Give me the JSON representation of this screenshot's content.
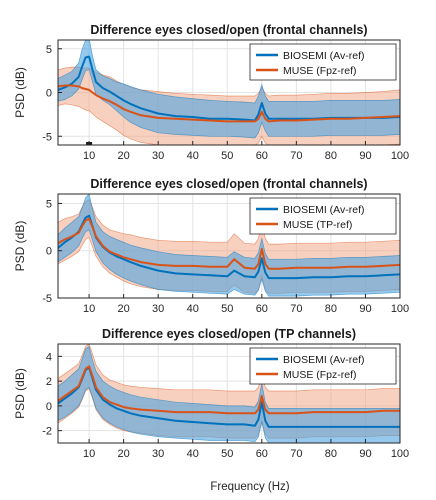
{
  "figure": {
    "xlabel": "Frequency (Hz)",
    "colors": {
      "biosemi": "#0072BD",
      "muse": "#D95319",
      "biosemi_band": "#4DA3E0",
      "muse_band": "#F2A98A"
    }
  },
  "chart_data": [
    {
      "type": "line",
      "title": "Difference eyes closed/open (frontal channels)",
      "ylabel": "PSD (dB)",
      "xlabel": "",
      "xlim": [
        1,
        100
      ],
      "ylim": [
        -6,
        6
      ],
      "xticks": [
        10,
        20,
        30,
        40,
        50,
        60,
        70,
        80,
        90,
        100
      ],
      "yticks": [
        -5,
        0,
        5
      ],
      "grid": true,
      "legend": "top-right",
      "marker": {
        "x": 10,
        "y": -6
      },
      "series": [
        {
          "name": "BIOSEMI (Av-ref)",
          "x": [
            1,
            3,
            5,
            7,
            8,
            9,
            10,
            11,
            12,
            14,
            16,
            18,
            20,
            22,
            25,
            30,
            35,
            40,
            45,
            50,
            55,
            58,
            59,
            60,
            61,
            62,
            65,
            70,
            75,
            80,
            85,
            90,
            95,
            100
          ],
          "y": [
            0.3,
            0.6,
            1.0,
            1.8,
            3.0,
            4.0,
            4.1,
            2.6,
            1.2,
            0.5,
            0.1,
            -0.4,
            -0.9,
            -1.3,
            -1.8,
            -2.4,
            -2.7,
            -2.8,
            -3.0,
            -3.0,
            -3.1,
            -3.2,
            -2.5,
            -1.2,
            -2.4,
            -3.0,
            -3.0,
            -3.0,
            -3.0,
            -2.9,
            -2.9,
            -2.9,
            -2.9,
            -2.8
          ],
          "lower": [
            -1.0,
            -0.8,
            -0.4,
            0.4,
            1.5,
            2.5,
            2.6,
            1.2,
            -0.2,
            -0.9,
            -1.4,
            -2.1,
            -2.8,
            -3.4,
            -4.0,
            -4.6,
            -4.8,
            -4.9,
            -5.0,
            -5.0,
            -5.1,
            -5.2,
            -4.6,
            -3.4,
            -4.4,
            -5.0,
            -5.0,
            -5.0,
            -5.0,
            -4.9,
            -4.9,
            -4.9,
            -4.9,
            -4.8
          ],
          "upper": [
            1.6,
            2.0,
            2.4,
            3.4,
            5.0,
            6.0,
            6.2,
            4.2,
            2.6,
            1.9,
            1.6,
            1.2,
            1.0,
            0.7,
            0.3,
            -0.2,
            -0.5,
            -0.7,
            -0.9,
            -1.0,
            -1.1,
            -1.2,
            -0.4,
            0.9,
            -0.4,
            -1.0,
            -1.0,
            -1.0,
            -1.0,
            -0.9,
            -0.9,
            -0.9,
            -0.9,
            -0.8
          ]
        },
        {
          "name": "MUSE (Fpz-ref)",
          "x": [
            1,
            3,
            5,
            7,
            8,
            9,
            10,
            11,
            12,
            14,
            16,
            18,
            20,
            22,
            25,
            30,
            35,
            40,
            45,
            50,
            55,
            58,
            59,
            60,
            61,
            62,
            65,
            70,
            75,
            80,
            85,
            90,
            95,
            100
          ],
          "y": [
            0.7,
            0.8,
            0.8,
            0.7,
            0.5,
            0.4,
            0.3,
            0.0,
            -0.3,
            -0.7,
            -1.0,
            -1.4,
            -1.9,
            -2.2,
            -2.6,
            -2.9,
            -3.0,
            -3.1,
            -3.2,
            -3.3,
            -3.3,
            -3.3,
            -3.0,
            -2.2,
            -3.0,
            -3.3,
            -3.2,
            -3.2,
            -3.1,
            -3.0,
            -3.0,
            -2.9,
            -2.8,
            -2.7
          ],
          "lower": [
            -1.5,
            -1.3,
            -1.4,
            -1.6,
            -1.8,
            -2.0,
            -2.1,
            -2.4,
            -2.8,
            -3.3,
            -3.8,
            -4.3,
            -4.9,
            -5.3,
            -5.7,
            -6.0,
            -6.0,
            -6.0,
            -6.0,
            -6.0,
            -6.0,
            -6.0,
            -5.8,
            -5.0,
            -5.8,
            -6.0,
            -6.0,
            -6.0,
            -6.0,
            -6.0,
            -6.0,
            -6.0,
            -6.0,
            -5.9
          ],
          "upper": [
            2.6,
            2.8,
            2.9,
            2.9,
            2.8,
            2.8,
            2.8,
            2.6,
            2.3,
            2.0,
            1.8,
            1.3,
            0.9,
            0.6,
            0.3,
            0.1,
            -0.1,
            -0.2,
            -0.3,
            -0.4,
            -0.4,
            -0.4,
            -0.1,
            0.6,
            -0.1,
            -0.4,
            -0.3,
            -0.3,
            -0.2,
            -0.1,
            -0.1,
            0.0,
            0.1,
            0.3
          ]
        }
      ]
    },
    {
      "type": "line",
      "title": "Difference eyes closed/open (frontal channels)",
      "ylabel": "PSD (dB)",
      "xlabel": "",
      "xlim": [
        1,
        100
      ],
      "ylim": [
        -5,
        6
      ],
      "xticks": [
        10,
        20,
        30,
        40,
        50,
        60,
        70,
        80,
        90,
        100
      ],
      "yticks": [
        -5,
        0,
        5
      ],
      "grid": true,
      "legend": "top-right",
      "series": [
        {
          "name": "BIOSEMI (Av-ref)",
          "x": [
            1,
            3,
            5,
            7,
            8,
            9,
            10,
            11,
            12,
            14,
            16,
            18,
            20,
            22,
            25,
            30,
            35,
            40,
            45,
            50,
            52,
            55,
            58,
            59,
            60,
            61,
            62,
            65,
            70,
            75,
            80,
            85,
            90,
            95,
            100
          ],
          "y": [
            0.3,
            0.9,
            1.4,
            2.0,
            2.8,
            3.5,
            3.7,
            2.6,
            1.4,
            0.4,
            -0.2,
            -0.6,
            -0.9,
            -1.2,
            -1.6,
            -2.1,
            -2.4,
            -2.5,
            -2.6,
            -2.7,
            -2.1,
            -2.7,
            -2.8,
            -2.2,
            -0.8,
            -2.3,
            -2.9,
            -2.9,
            -2.9,
            -2.8,
            -2.8,
            -2.7,
            -2.7,
            -2.6,
            -2.5
          ],
          "lower": [
            -1.2,
            -0.7,
            -0.2,
            0.5,
            1.3,
            2.0,
            2.2,
            1.1,
            -0.1,
            -1.3,
            -2.0,
            -2.5,
            -2.9,
            -3.2,
            -3.6,
            -4.1,
            -4.3,
            -4.4,
            -4.5,
            -4.6,
            -4.1,
            -4.6,
            -4.7,
            -4.2,
            -3.0,
            -4.3,
            -4.8,
            -4.8,
            -4.8,
            -4.7,
            -4.7,
            -4.6,
            -4.6,
            -4.5,
            -4.4
          ],
          "upper": [
            1.7,
            2.4,
            3.0,
            3.6,
            4.6,
            5.6,
            6.0,
            4.4,
            3.0,
            2.0,
            1.5,
            1.2,
            0.9,
            0.6,
            0.3,
            -0.1,
            -0.4,
            -0.5,
            -0.6,
            -0.7,
            -0.1,
            -0.7,
            -0.8,
            -0.2,
            1.3,
            -0.3,
            -0.9,
            -0.9,
            -0.9,
            -0.8,
            -0.8,
            -0.7,
            -0.7,
            -0.6,
            -0.5
          ]
        },
        {
          "name": "MUSE (TP-ref)",
          "x": [
            1,
            3,
            5,
            7,
            8,
            9,
            10,
            11,
            12,
            14,
            16,
            18,
            20,
            22,
            25,
            30,
            35,
            40,
            45,
            50,
            52,
            55,
            58,
            59,
            60,
            61,
            62,
            65,
            70,
            75,
            80,
            85,
            90,
            95,
            100
          ],
          "y": [
            0.8,
            1.2,
            1.5,
            1.9,
            2.6,
            3.2,
            3.4,
            2.5,
            1.5,
            0.5,
            -0.1,
            -0.4,
            -0.7,
            -0.9,
            -1.2,
            -1.5,
            -1.6,
            -1.6,
            -1.7,
            -1.7,
            -0.9,
            -1.8,
            -1.9,
            -1.4,
            0.2,
            -1.4,
            -1.9,
            -1.9,
            -1.8,
            -1.8,
            -1.8,
            -1.7,
            -1.7,
            -1.6,
            -1.5
          ],
          "lower": [
            -1.4,
            -1.0,
            -0.6,
            -0.1,
            0.6,
            1.2,
            1.4,
            0.4,
            -0.6,
            -1.7,
            -2.4,
            -2.8,
            -3.2,
            -3.5,
            -3.8,
            -4.1,
            -4.2,
            -4.2,
            -4.3,
            -4.3,
            -3.6,
            -4.4,
            -4.5,
            -4.1,
            -2.7,
            -4.1,
            -4.5,
            -4.5,
            -4.4,
            -4.4,
            -4.4,
            -4.3,
            -4.3,
            -4.2,
            -4.1
          ],
          "upper": [
            3.0,
            3.4,
            3.6,
            3.9,
            4.6,
            5.2,
            5.4,
            4.6,
            3.6,
            2.7,
            2.2,
            2.0,
            1.8,
            1.7,
            1.4,
            1.1,
            1.0,
            1.0,
            0.9,
            0.9,
            1.8,
            0.8,
            0.7,
            1.3,
            3.1,
            1.3,
            0.7,
            0.7,
            0.8,
            0.8,
            0.8,
            0.9,
            0.9,
            1.0,
            1.1
          ]
        }
      ]
    },
    {
      "type": "line",
      "title": "Difference eyes closed/open (TP channels)",
      "ylabel": "PSD (dB)",
      "xlabel": "Frequency (Hz)",
      "xlim": [
        1,
        100
      ],
      "ylim": [
        -3,
        5
      ],
      "xticks": [
        10,
        20,
        30,
        40,
        50,
        60,
        70,
        80,
        90,
        100
      ],
      "yticks": [
        -2,
        0,
        2,
        4
      ],
      "grid": true,
      "legend": "top-right",
      "series": [
        {
          "name": "BIOSEMI (Av-ref)",
          "x": [
            1,
            3,
            5,
            7,
            8,
            9,
            10,
            11,
            12,
            14,
            16,
            18,
            20,
            22,
            25,
            30,
            35,
            40,
            45,
            50,
            55,
            58,
            59,
            60,
            61,
            62,
            65,
            70,
            75,
            80,
            85,
            90,
            95,
            100
          ],
          "y": [
            0.2,
            0.6,
            1.0,
            1.5,
            2.2,
            2.9,
            3.1,
            2.2,
            1.3,
            0.5,
            0.1,
            -0.2,
            -0.4,
            -0.6,
            -0.8,
            -1.0,
            -1.2,
            -1.3,
            -1.4,
            -1.5,
            -1.5,
            -1.6,
            -1.1,
            0.3,
            -1.2,
            -1.7,
            -1.7,
            -1.7,
            -1.7,
            -1.7,
            -1.7,
            -1.7,
            -1.7,
            -1.7
          ],
          "lower": [
            -1.2,
            -0.9,
            -0.5,
            0.0,
            0.6,
            1.3,
            1.5,
            0.7,
            -0.2,
            -1.0,
            -1.4,
            -1.7,
            -1.9,
            -2.1,
            -2.3,
            -2.5,
            -2.6,
            -2.7,
            -2.8,
            -2.8,
            -2.8,
            -2.9,
            -2.5,
            -1.3,
            -2.6,
            -3.0,
            -3.0,
            -3.0,
            -3.0,
            -3.0,
            -3.0,
            -3.0,
            -3.0,
            -3.0
          ],
          "upper": [
            1.6,
            2.0,
            2.5,
            3.0,
            3.8,
            4.6,
            4.8,
            3.7,
            2.8,
            2.0,
            1.6,
            1.3,
            1.1,
            0.9,
            0.7,
            0.5,
            0.3,
            0.2,
            0.1,
            0.0,
            0.0,
            -0.1,
            0.4,
            1.8,
            0.3,
            -0.2,
            -0.2,
            -0.2,
            -0.2,
            -0.2,
            -0.2,
            -0.2,
            -0.2,
            -0.2
          ]
        },
        {
          "name": "MUSE (Fpz-ref)",
          "x": [
            1,
            3,
            5,
            7,
            8,
            9,
            10,
            11,
            12,
            14,
            16,
            18,
            20,
            22,
            25,
            30,
            35,
            40,
            45,
            50,
            55,
            58,
            59,
            60,
            61,
            62,
            65,
            70,
            75,
            80,
            85,
            90,
            95,
            100
          ],
          "y": [
            0.4,
            0.8,
            1.2,
            1.6,
            2.3,
            3.0,
            3.2,
            2.4,
            1.5,
            0.7,
            0.3,
            0.1,
            -0.1,
            -0.2,
            -0.3,
            -0.4,
            -0.5,
            -0.5,
            -0.5,
            -0.6,
            -0.6,
            -0.6,
            -0.3,
            0.8,
            -0.3,
            -0.6,
            -0.6,
            -0.6,
            -0.5,
            -0.5,
            -0.5,
            -0.5,
            -0.4,
            -0.4
          ],
          "lower": [
            -1.4,
            -1.0,
            -0.6,
            -0.1,
            0.5,
            1.2,
            1.4,
            0.6,
            -0.3,
            -1.1,
            -1.5,
            -1.8,
            -2.0,
            -2.1,
            -2.2,
            -2.4,
            -2.5,
            -2.5,
            -2.5,
            -2.6,
            -2.6,
            -2.6,
            -2.3,
            -1.2,
            -2.3,
            -2.6,
            -2.6,
            -2.6,
            -2.5,
            -2.5,
            -2.5,
            -2.5,
            -2.4,
            -2.4
          ],
          "upper": [
            2.2,
            2.6,
            3.0,
            3.4,
            4.1,
            4.8,
            5.0,
            4.2,
            3.3,
            2.5,
            2.1,
            1.9,
            1.7,
            1.6,
            1.5,
            1.4,
            1.3,
            1.3,
            1.3,
            1.2,
            1.2,
            1.2,
            1.5,
            2.6,
            1.5,
            1.2,
            1.2,
            1.2,
            1.3,
            1.3,
            1.3,
            1.3,
            1.4,
            1.4
          ]
        }
      ]
    }
  ]
}
